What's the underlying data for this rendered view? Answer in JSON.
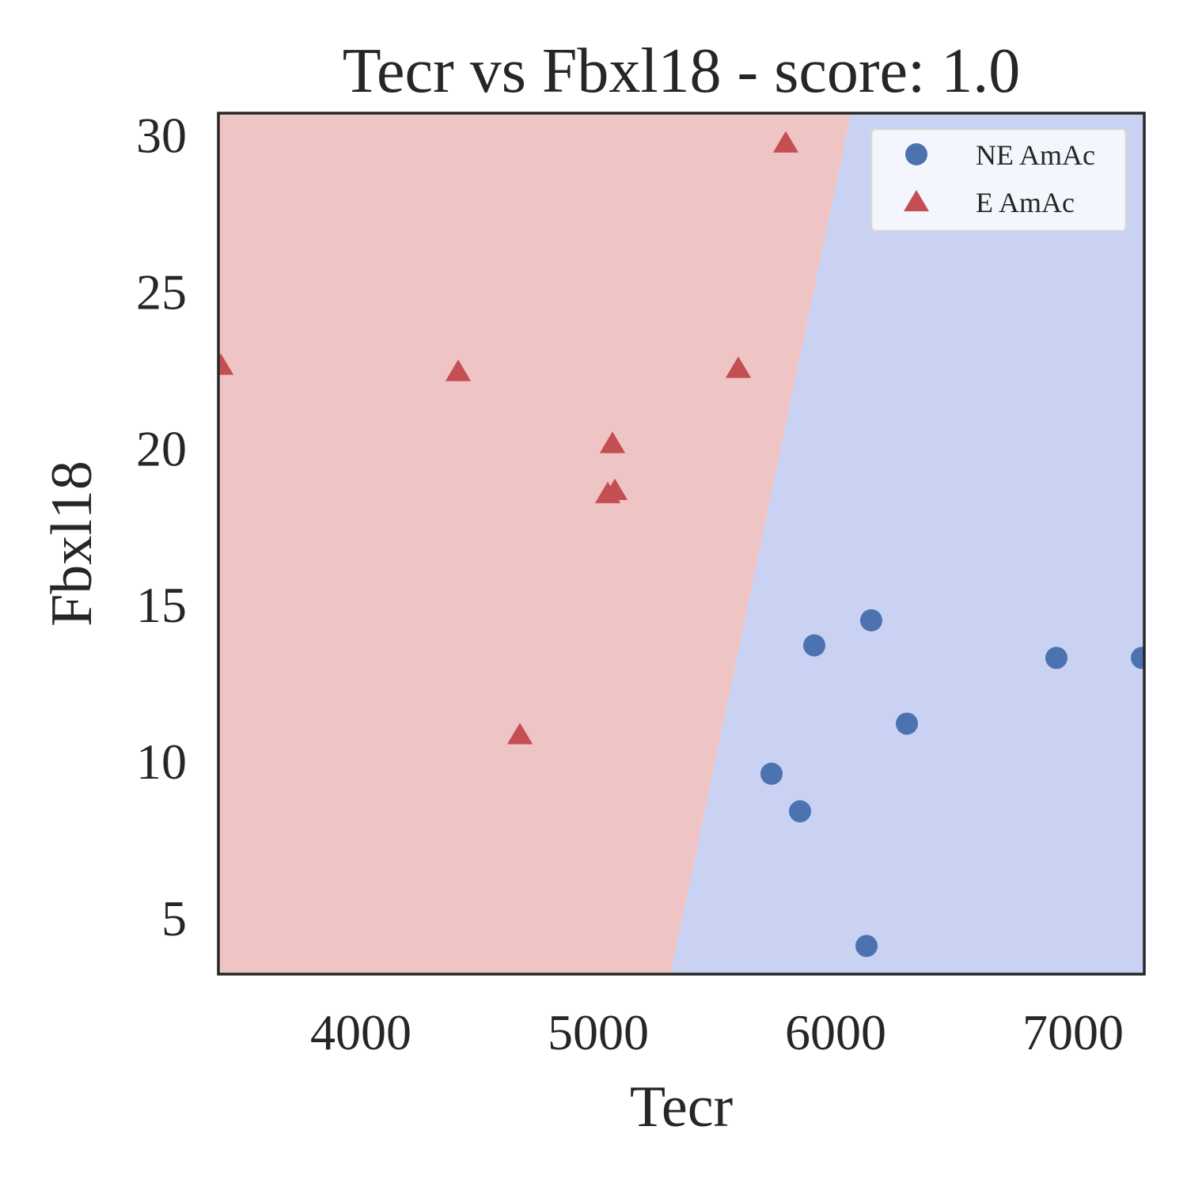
{
  "chart_data": {
    "type": "scatter",
    "title": "Tecr vs Fbxl18 - score: 1.0",
    "xlabel": "Tecr",
    "ylabel": "Fbxl18",
    "xlim": [
      3400,
      7300
    ],
    "ylim": [
      3.2,
      30.7
    ],
    "xticks": [
      4000,
      5000,
      6000,
      7000
    ],
    "yticks": [
      5,
      10,
      15,
      20,
      25,
      30
    ],
    "grid": false,
    "legend_position": "top-right",
    "decision_boundary": {
      "points": [
        [
          5305,
          3.2
        ],
        [
          6065,
          30.7
        ]
      ],
      "left_region_color": "#eec4c4",
      "right_region_color": "#c9d2f2"
    },
    "series": [
      {
        "name": "NE AmAc",
        "marker": "circle",
        "color": "#4c72b0",
        "points": [
          [
            5730,
            9.6
          ],
          [
            5850,
            8.4
          ],
          [
            5910,
            13.7
          ],
          [
            6150,
            14.5
          ],
          [
            6300,
            11.2
          ],
          [
            6130,
            4.1
          ],
          [
            6930,
            13.3
          ],
          [
            7290,
            13.3
          ]
        ]
      },
      {
        "name": "E AmAc",
        "marker": "triangle",
        "color": "#c44e52",
        "points": [
          [
            3410,
            22.6
          ],
          [
            4410,
            22.4
          ],
          [
            4670,
            10.8
          ],
          [
            5060,
            20.1
          ],
          [
            5040,
            18.5
          ],
          [
            5070,
            18.6
          ],
          [
            5590,
            22.5
          ],
          [
            5790,
            29.7
          ]
        ]
      }
    ]
  }
}
